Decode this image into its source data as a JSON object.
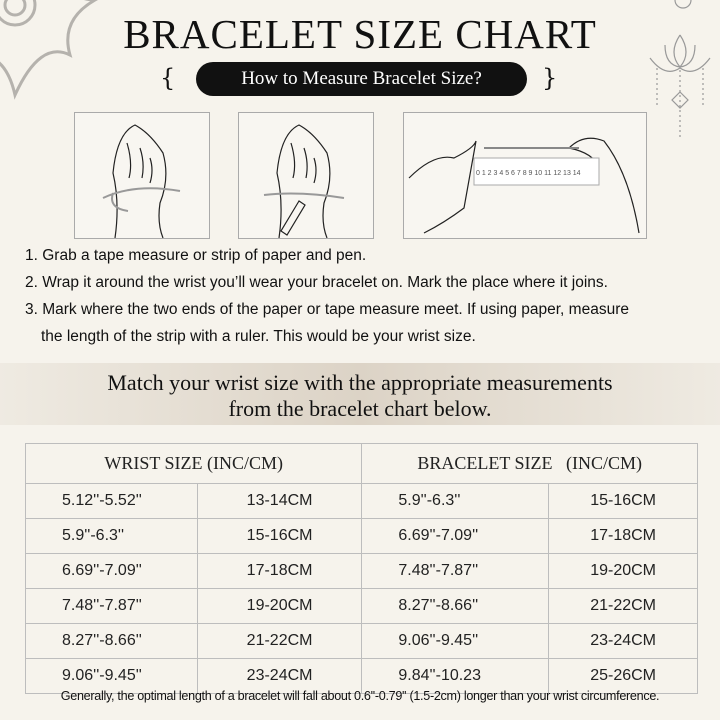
{
  "title": "BRACELET SIZE CHART",
  "subtitle": "How to Measure Bracelet Size?",
  "illustrations": [
    {
      "icon": "hand-wrap-string-icon"
    },
    {
      "icon": "hand-mark-pen-icon"
    },
    {
      "icon": "hands-ruler-icon",
      "ruler_numbers": "0 1 2 3 4 5 6 7 8 9 10 11 12 13 14"
    }
  ],
  "steps": [
    "1. Grab a tape measure or strip of paper and pen.",
    "2. Wrap it around the wrist you’ll wear your bracelet on. Mark the place where it joins.",
    "3. Mark where the two ends of the paper or tape measure meet. If using paper, measure",
    "the length of the strip with a ruler. This would be your wrist size."
  ],
  "banner": [
    "Match your wrist size with the appropriate measurements",
    "from the bracelet chart below."
  ],
  "table": {
    "headers": [
      "WRIST SIZE (INC/CM)",
      "BRACELET SIZE   (INC/CM)"
    ],
    "rows": [
      [
        "5.12''-5.52''",
        "13-14CM",
        "5.9''-6.3''",
        "15-16CM"
      ],
      [
        "5.9''-6.3''",
        "15-16CM",
        "6.69''-7.09''",
        "17-18CM"
      ],
      [
        "6.69''-7.09''",
        "17-18CM",
        "7.48''-7.87''",
        "19-20CM"
      ],
      [
        "7.48''-7.87''",
        "19-20CM",
        "8.27''-8.66''",
        "21-22CM"
      ],
      [
        "8.27''-8.66''",
        "21-22CM",
        "9.06''-9.45''",
        "23-24CM"
      ],
      [
        "9.06''-9.45''",
        "23-24CM",
        "9.84''-10.23",
        "25-26CM"
      ]
    ]
  },
  "footnote": "Generally, the optimal length of a bracelet will fall about 0.6''-0.79'' (1.5-2cm) longer than your wrist circumference.",
  "colors": {
    "background": "#f6f3ec",
    "pill": "#111111",
    "border": "#bdbdbd"
  }
}
